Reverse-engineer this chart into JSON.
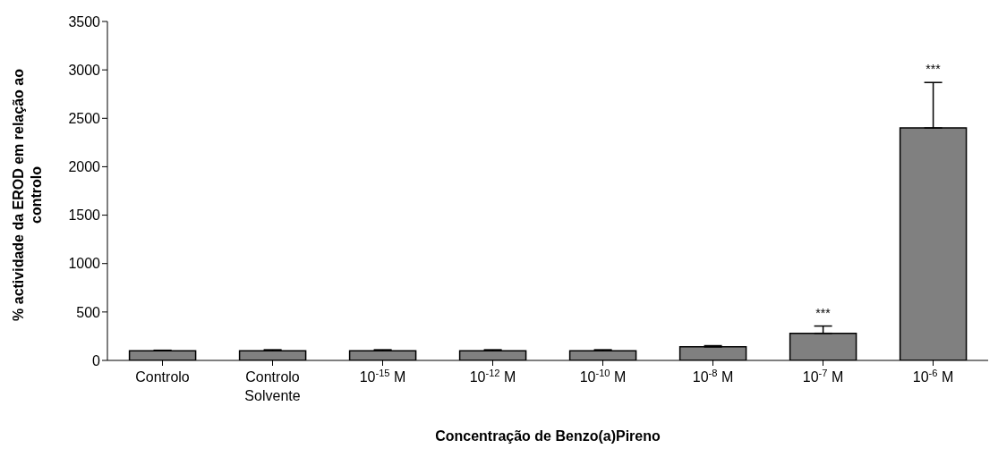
{
  "chart_data": {
    "type": "bar",
    "xlabel": "Concentração de Benzo(a)Pireno",
    "ylabel": "% actividade da EROD em relação ao controlo",
    "categories": [
      "Controlo",
      "Controlo Solvente",
      "10$^{-15}$ M",
      "10$^{-12}$ M",
      "10$^{-10}$ M",
      "10$^{-8}$ M",
      "10$^{-7}$ M",
      "10$^{-6}$ M"
    ],
    "values": [
      100,
      100,
      100,
      100,
      100,
      140,
      280,
      2400
    ],
    "errors": [
      [
        100,
        105
      ],
      [
        100,
        110
      ],
      [
        100,
        110
      ],
      [
        100,
        110
      ],
      [
        100,
        110
      ],
      [
        140,
        152
      ],
      [
        280,
        355
      ],
      [
        2400,
        2870
      ]
    ],
    "color": "#808080",
    "ylim": [
      0,
      3500
    ],
    "yticks": [
      0,
      500,
      1000,
      1500,
      2000,
      2500,
      3000,
      3500
    ],
    "annotations": [
      {
        "text": "***",
        "x": "10$^{-7}$ M",
        "y": 355
      },
      {
        "text": "***",
        "x": "10$^{-6}$ M",
        "y": 2870
      }
    ]
  }
}
